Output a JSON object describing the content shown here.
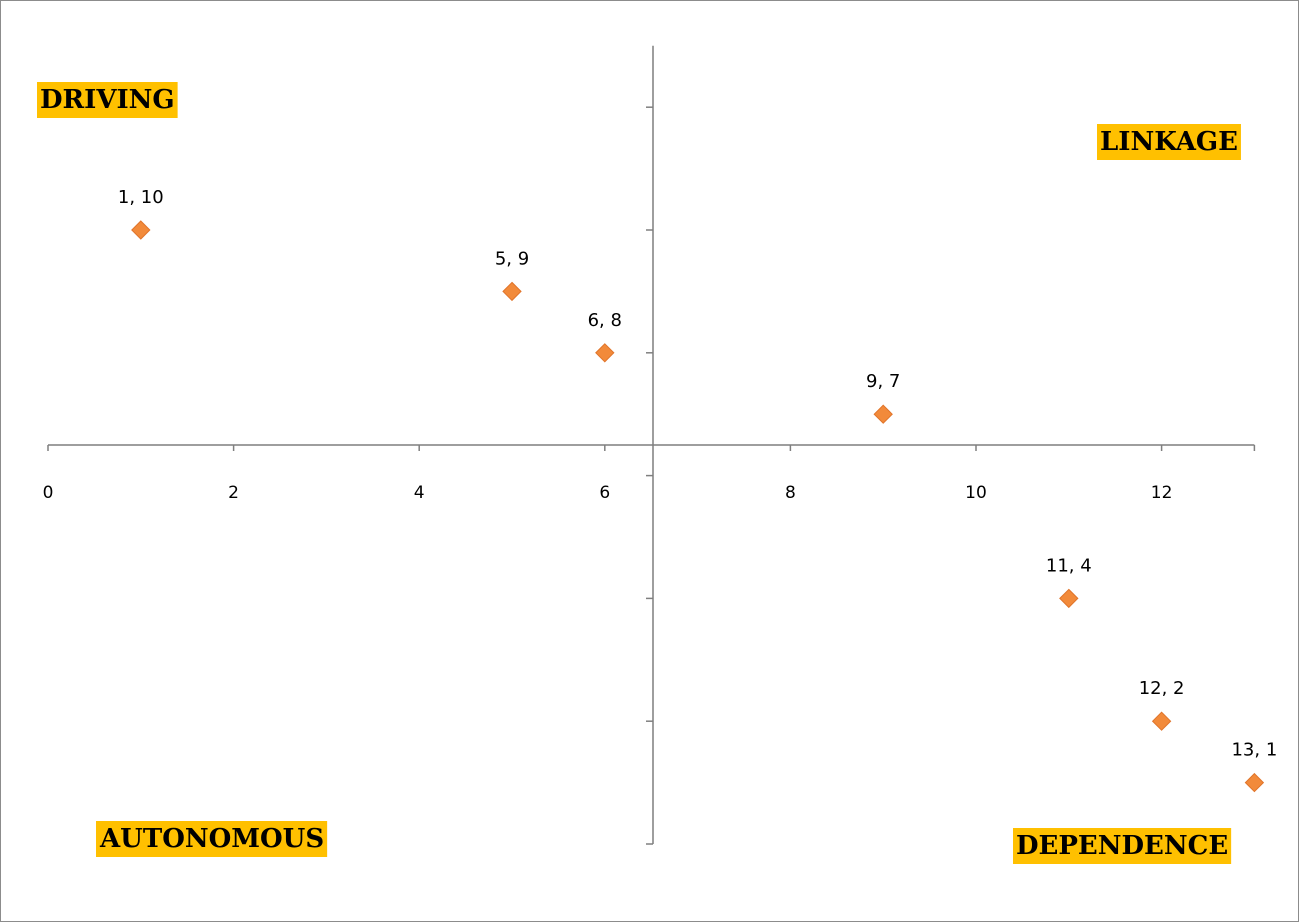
{
  "chart_data": {
    "type": "scatter",
    "title": "",
    "xlabel": "",
    "ylabel": "",
    "xlim": [
      0,
      13
    ],
    "ylim": [
      0,
      13
    ],
    "x_ticks": [
      "0",
      "2",
      "4",
      "6",
      "8",
      "10",
      "12"
    ],
    "grid": false,
    "legend": "none",
    "marker": "diamond",
    "marker_color": "#f28a3a",
    "label_highlight_color": "#ffc000",
    "points": [
      {
        "x": 1,
        "y": 10,
        "label": "1, 10"
      },
      {
        "x": 5,
        "y": 9,
        "label": "5, 9"
      },
      {
        "x": 6,
        "y": 8,
        "label": "6, 8"
      },
      {
        "x": 9,
        "y": 7,
        "label": "9, 7"
      },
      {
        "x": 11,
        "y": 4,
        "label": "11, 4"
      },
      {
        "x": 12,
        "y": 2,
        "label": "12, 2"
      },
      {
        "x": 13,
        "y": 1,
        "label": "13, 1"
      }
    ],
    "quadrants": {
      "top_left": "DRIVING",
      "top_right": "LINKAGE",
      "bottom_left": "AUTONOMOUS",
      "bottom_right": "DEPENDENCE"
    }
  }
}
